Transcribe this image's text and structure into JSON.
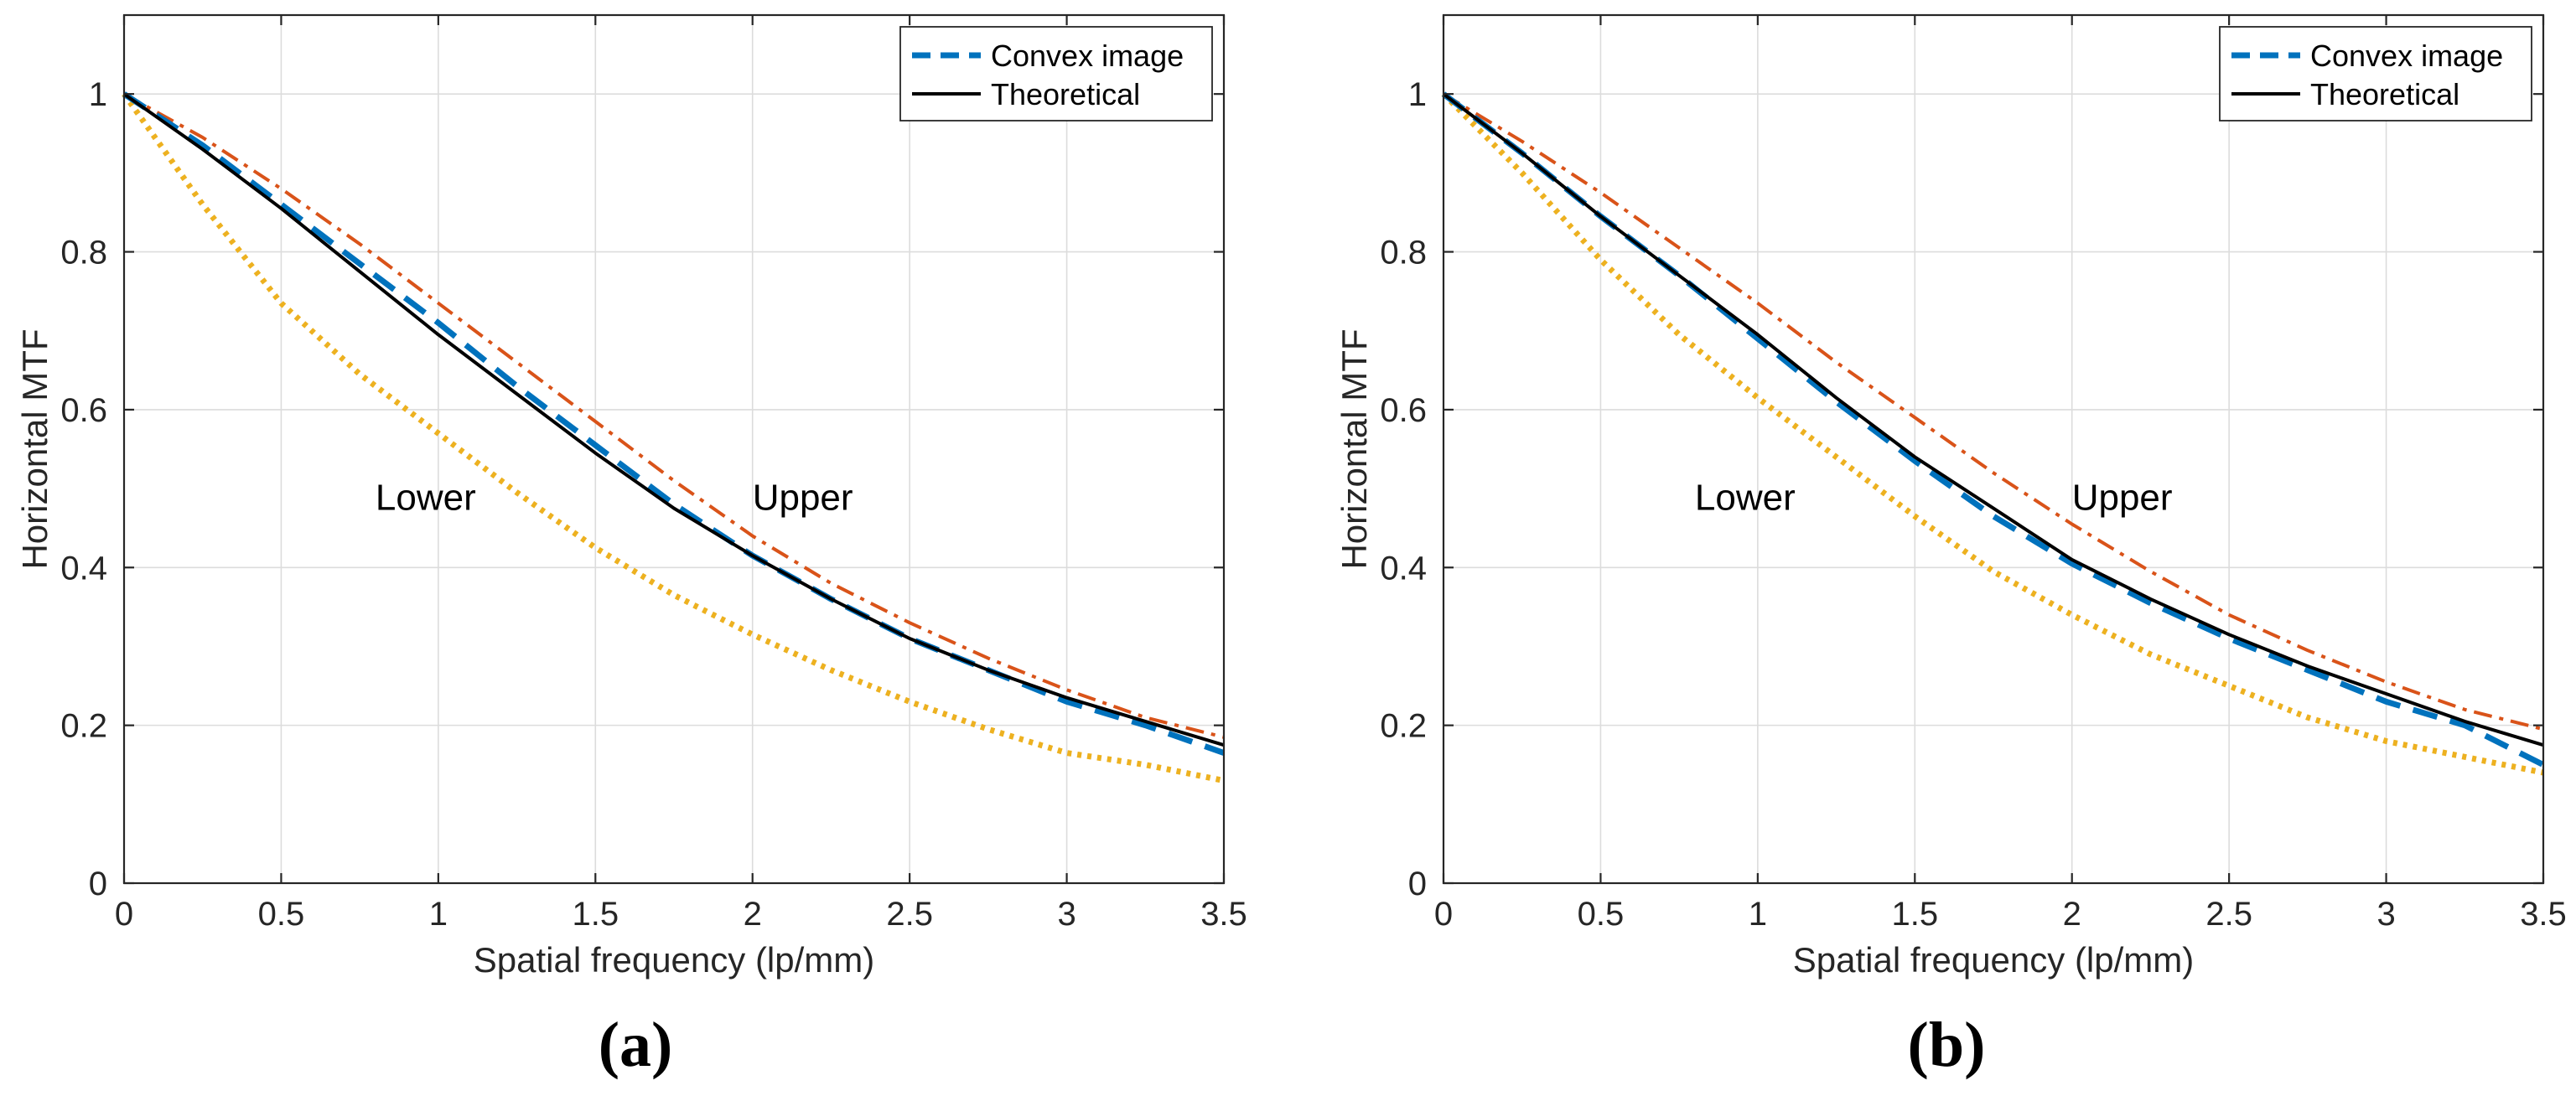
{
  "chart_data": [
    {
      "type": "line",
      "panel_label": "(a)",
      "xlabel": "Spatial frequency (lp/mm)",
      "ylabel": "Horizontal MTF",
      "xlim": [
        0,
        3.5
      ],
      "ylim": [
        0,
        1.1
      ],
      "xticks": [
        0,
        0.5,
        1,
        1.5,
        2,
        2.5,
        3,
        3.5
      ],
      "xtick_labels": [
        "0",
        "0.5",
        "1",
        "1.5",
        "2",
        "2.5",
        "3",
        "3.5"
      ],
      "yticks": [
        0,
        0.2,
        0.4,
        0.6,
        0.8,
        1
      ],
      "ytick_labels": [
        "0",
        "0.2",
        "0.4",
        "0.6",
        "0.8",
        "1"
      ],
      "grid": true,
      "legend_position": "top-right",
      "legend": [
        "Convex image",
        "Theoretical"
      ],
      "annotations": [
        {
          "text": "Lower",
          "x": 0.8,
          "y": 0.49
        },
        {
          "text": "Upper",
          "x": 2.0,
          "y": 0.49
        }
      ],
      "x": [
        0,
        0.25,
        0.5,
        0.75,
        1,
        1.25,
        1.5,
        1.75,
        2,
        2.25,
        2.5,
        2.75,
        3,
        3.25,
        3.5
      ],
      "series": [
        {
          "name": "Upper",
          "style": "dashdot",
          "color": "#D95319",
          "values": [
            1.0,
            0.945,
            0.88,
            0.81,
            0.735,
            0.66,
            0.585,
            0.51,
            0.44,
            0.38,
            0.33,
            0.285,
            0.245,
            0.21,
            0.185
          ]
        },
        {
          "name": "Lower",
          "style": "dotted",
          "color": "#EDB120",
          "values": [
            1.0,
            0.86,
            0.735,
            0.645,
            0.57,
            0.495,
            0.425,
            0.365,
            0.315,
            0.27,
            0.23,
            0.195,
            0.165,
            0.15,
            0.13
          ]
        },
        {
          "name": "Convex image",
          "style": "dashed",
          "color": "#0072BD",
          "values": [
            1.0,
            0.935,
            0.86,
            0.785,
            0.71,
            0.63,
            0.555,
            0.48,
            0.415,
            0.36,
            0.31,
            0.27,
            0.23,
            0.2,
            0.165
          ]
        },
        {
          "name": "Theoretical",
          "style": "solid",
          "color": "#000000",
          "values": [
            1.0,
            0.93,
            0.855,
            0.775,
            0.695,
            0.62,
            0.545,
            0.475,
            0.415,
            0.36,
            0.31,
            0.27,
            0.235,
            0.205,
            0.175
          ]
        }
      ]
    },
    {
      "type": "line",
      "panel_label": "(b)",
      "xlabel": "Spatial frequency (lp/mm)",
      "ylabel": "Horizontal MTF",
      "xlim": [
        0,
        3.5
      ],
      "ylim": [
        0,
        1.1
      ],
      "xticks": [
        0,
        0.5,
        1,
        1.5,
        2,
        2.5,
        3,
        3.5
      ],
      "xtick_labels": [
        "0",
        "0.5",
        "1",
        "1.5",
        "2",
        "2.5",
        "3",
        "3.5"
      ],
      "yticks": [
        0,
        0.2,
        0.4,
        0.6,
        0.8,
        1
      ],
      "ytick_labels": [
        "0",
        "0.2",
        "0.4",
        "0.6",
        "0.8",
        "1"
      ],
      "grid": true,
      "legend_position": "top-right",
      "legend": [
        "Convex image",
        "Theoretical"
      ],
      "annotations": [
        {
          "text": "Lower",
          "x": 0.8,
          "y": 0.49
        },
        {
          "text": "Upper",
          "x": 2.0,
          "y": 0.49
        }
      ],
      "x": [
        0,
        0.25,
        0.5,
        0.75,
        1,
        1.25,
        1.5,
        1.75,
        2,
        2.25,
        2.5,
        2.75,
        3,
        3.25,
        3.5
      ],
      "series": [
        {
          "name": "Upper",
          "style": "dashdot",
          "color": "#D95319",
          "values": [
            1.0,
            0.94,
            0.875,
            0.805,
            0.735,
            0.66,
            0.59,
            0.52,
            0.455,
            0.395,
            0.34,
            0.295,
            0.255,
            0.22,
            0.195
          ]
        },
        {
          "name": "Lower",
          "style": "dotted",
          "color": "#EDB120",
          "values": [
            1.0,
            0.9,
            0.79,
            0.695,
            0.615,
            0.54,
            0.465,
            0.395,
            0.34,
            0.29,
            0.25,
            0.21,
            0.18,
            0.16,
            0.14
          ]
        },
        {
          "name": "Convex image",
          "style": "dashed",
          "color": "#0072BD",
          "values": [
            1.0,
            0.925,
            0.845,
            0.77,
            0.69,
            0.61,
            0.535,
            0.465,
            0.405,
            0.355,
            0.31,
            0.27,
            0.23,
            0.2,
            0.15
          ]
        },
        {
          "name": "Theoretical",
          "style": "solid",
          "color": "#000000",
          "values": [
            1.0,
            0.925,
            0.845,
            0.77,
            0.695,
            0.615,
            0.54,
            0.475,
            0.41,
            0.36,
            0.315,
            0.275,
            0.24,
            0.205,
            0.175
          ]
        }
      ]
    }
  ]
}
